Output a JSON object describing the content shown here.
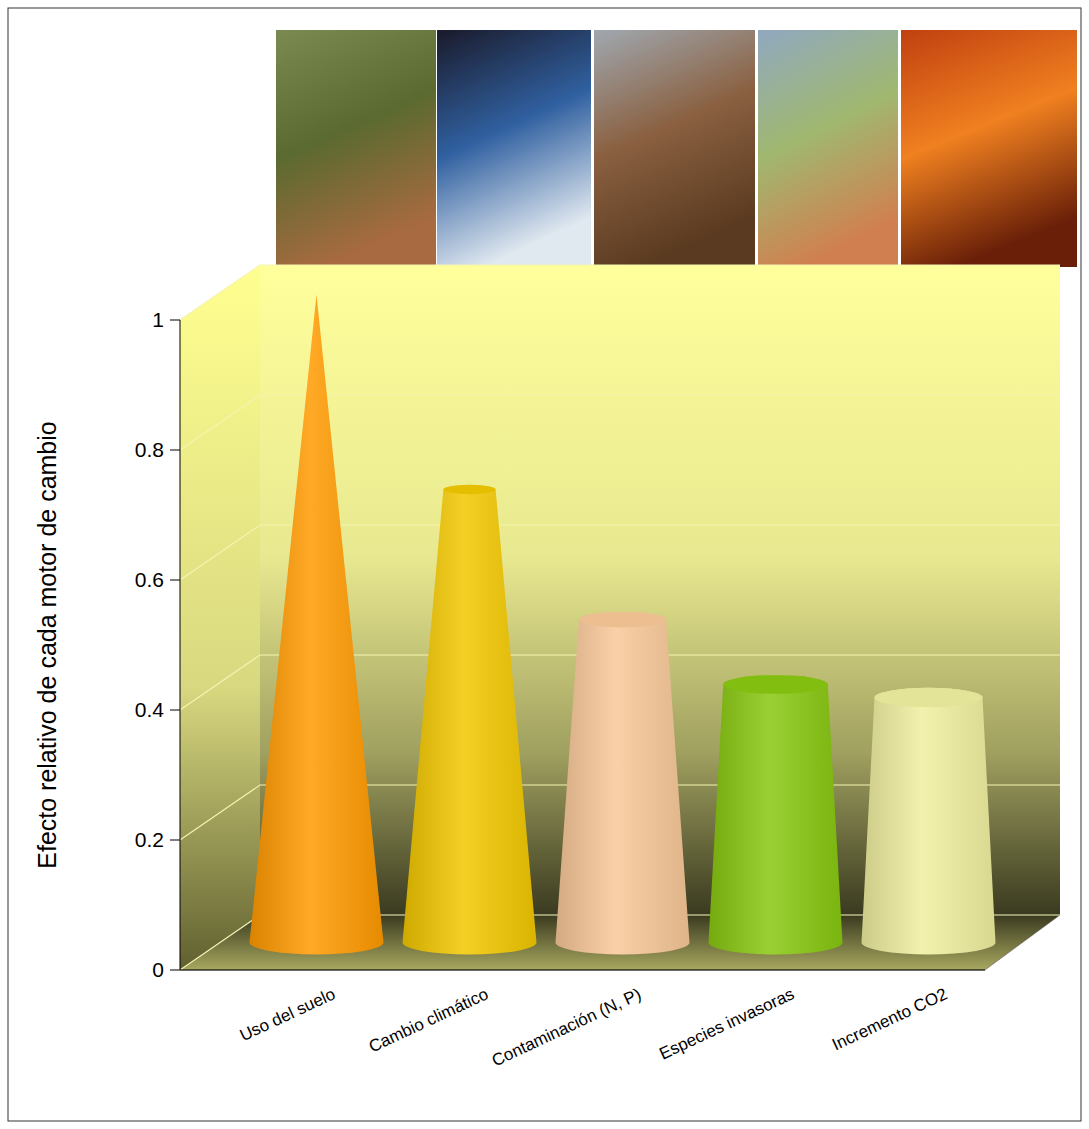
{
  "chart_data": {
    "type": "bar",
    "y_label": "Efecto relativo de cada motor de cambio",
    "categories": [
      "Uso del suelo",
      "Cambio climático",
      "Contaminación (N, P)",
      "Especies invasoras",
      "Incremento CO2"
    ],
    "values": [
      1.0,
      0.7,
      0.5,
      0.4,
      0.38
    ],
    "colors": [
      "#ff9a00",
      "#f2c800",
      "#f8c898",
      "#88c810",
      "#f0f0a0"
    ],
    "ylim": [
      0,
      1
    ],
    "yticks": [
      0,
      0.2,
      0.4,
      0.6,
      0.8,
      1
    ],
    "grid": true
  }
}
